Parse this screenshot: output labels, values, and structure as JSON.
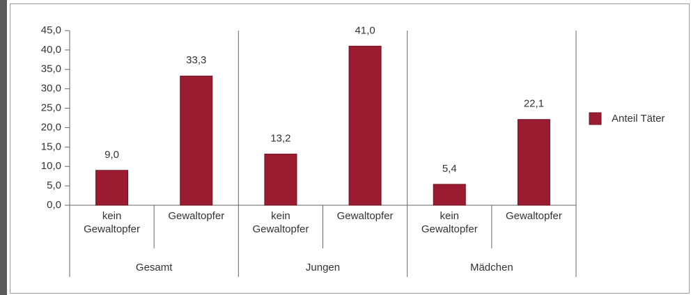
{
  "chart_data": {
    "type": "bar",
    "categories": [
      "kein Gewaltopfer",
      "Gewaltopfer",
      "kein Gewaltopfer",
      "Gewaltopfer",
      "kein Gewaltopfer",
      "Gewaltopfer"
    ],
    "groups": [
      "Gesamt",
      "Jungen",
      "Mädchen"
    ],
    "series": [
      {
        "name": "Anteil Täter",
        "color": "#9b1b30",
        "values": [
          9.0,
          33.3,
          13.2,
          41.0,
          5.4,
          22.1
        ],
        "value_labels": [
          "9,0",
          "33,3",
          "13,2",
          "41,0",
          "5,4",
          "22,1"
        ]
      }
    ],
    "ylim": [
      0,
      45
    ],
    "yticks": [
      {
        "value": 0,
        "label": "0,0"
      },
      {
        "value": 5,
        "label": "5,0"
      },
      {
        "value": 10,
        "label": "10,0"
      },
      {
        "value": 15,
        "label": "15,0"
      },
      {
        "value": 20,
        "label": "20,0"
      },
      {
        "value": 25,
        "label": "25,0"
      },
      {
        "value": 30,
        "label": "30,0"
      },
      {
        "value": 35,
        "label": "35,0"
      },
      {
        "value": 40,
        "label": "40,0"
      },
      {
        "value": 45,
        "label": "45,0"
      }
    ],
    "legend": "right"
  }
}
